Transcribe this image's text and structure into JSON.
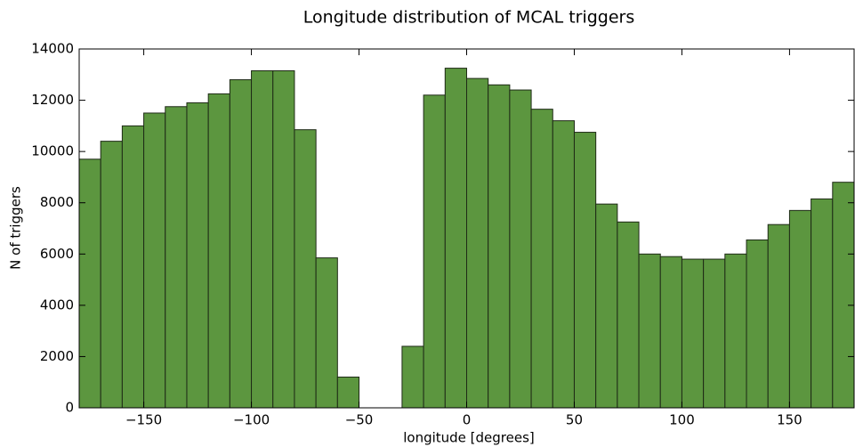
{
  "chart_data": {
    "type": "histogram",
    "title": "Longitude distribution of MCAL triggers",
    "x_label": "longitude [degrees]",
    "y_label": "N of triggers",
    "bins": [
      -180,
      -170,
      -160,
      -150,
      -140,
      -130,
      -120,
      -110,
      -100,
      -90,
      -80,
      -70,
      -60,
      -50,
      -40,
      -30,
      -20,
      -10,
      0,
      10,
      20,
      30,
      40,
      50,
      60,
      70,
      80,
      90,
      100,
      110,
      120,
      130,
      140,
      150,
      160,
      170,
      180
    ],
    "counts": [
      9700,
      10400,
      11000,
      11500,
      11750,
      11900,
      12250,
      12800,
      13150,
      13150,
      10850,
      5850,
      1200,
      0,
      0,
      2400,
      12200,
      13250,
      12850,
      12600,
      12400,
      11650,
      11200,
      10750,
      7950,
      7250,
      6000,
      5900,
      5800,
      5800,
      6000,
      6550,
      7150,
      7700,
      8150,
      8800
    ],
    "color": "#5c963f",
    "edgecolor": "#1e2a16",
    "xlim": [
      -180,
      180
    ],
    "ylim": [
      0,
      14000
    ],
    "xticks": [
      {
        "value": -150,
        "label": "−150"
      },
      {
        "value": -100,
        "label": "−100"
      },
      {
        "value": -50,
        "label": "−50"
      },
      0,
      50,
      100,
      150
    ],
    "yticks": [
      0,
      2000,
      4000,
      6000,
      8000,
      10000,
      12000,
      14000
    ]
  }
}
